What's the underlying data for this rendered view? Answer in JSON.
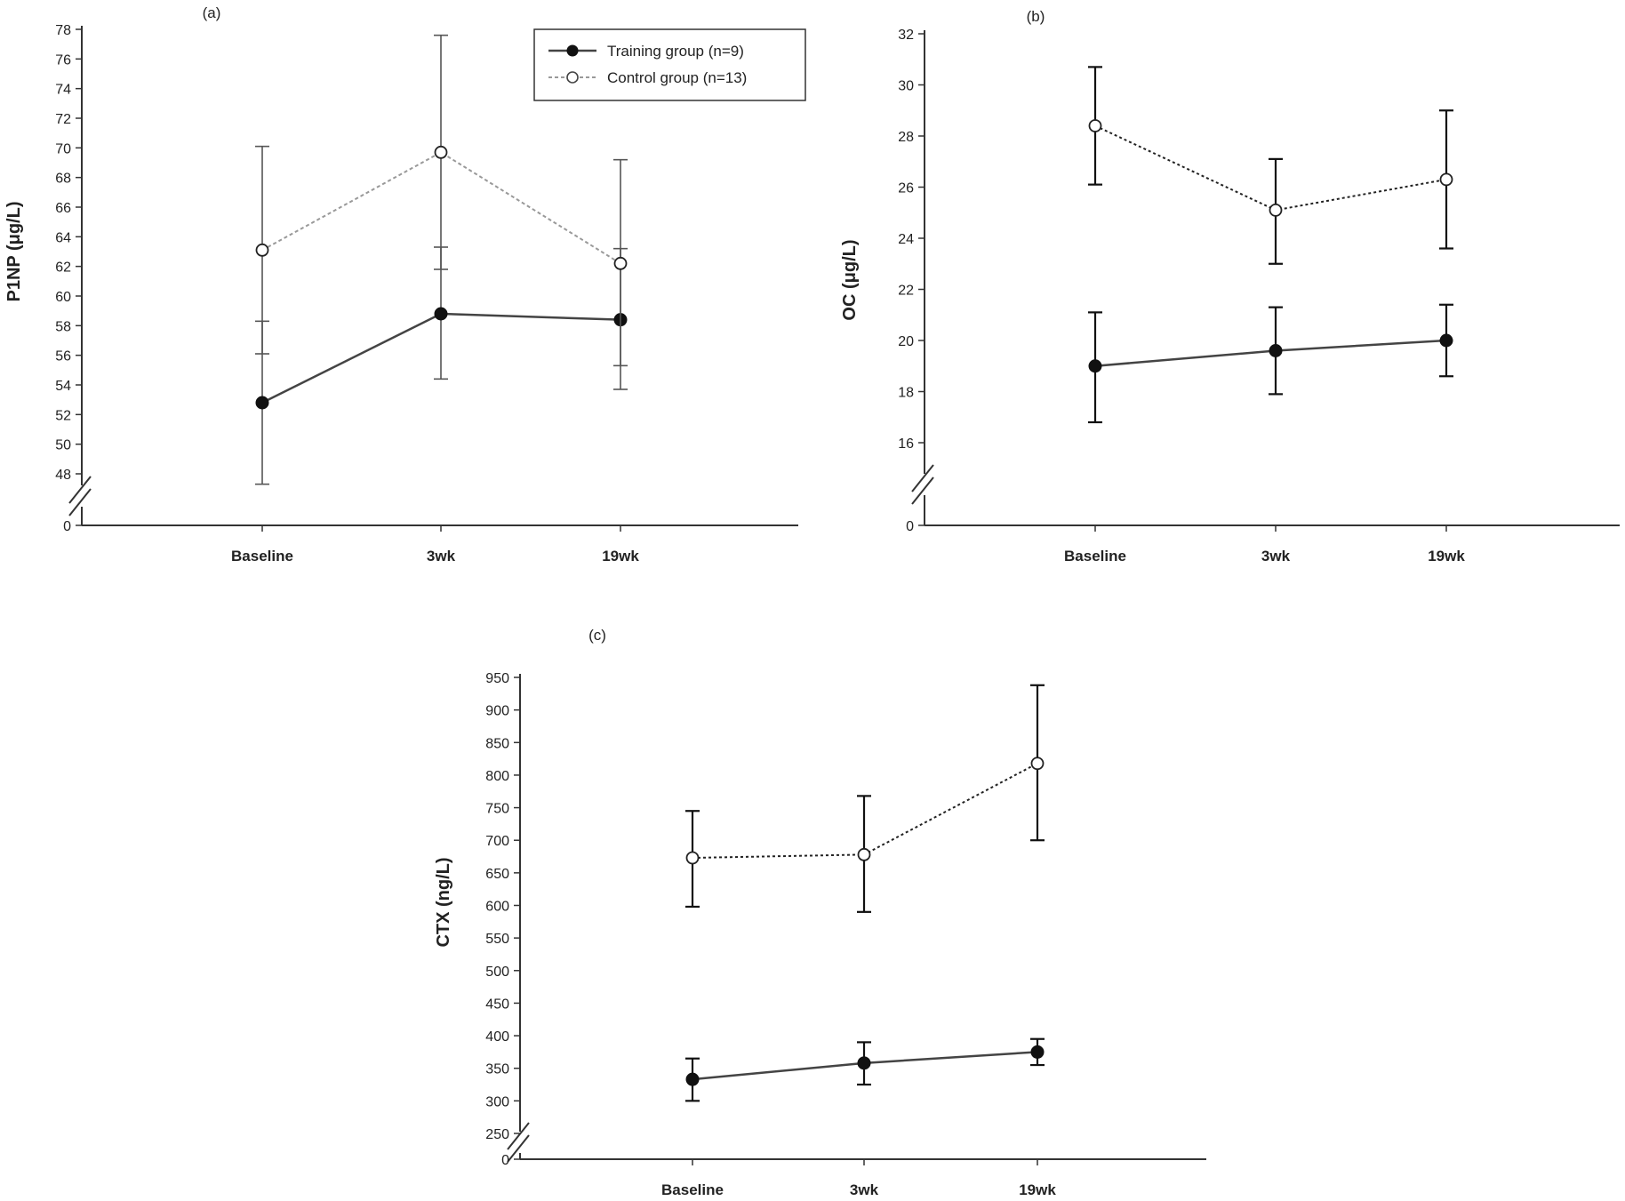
{
  "legend": {
    "training": "Training group (n=9)",
    "control": "Control group (n=13)"
  },
  "colors": {
    "axis": "#333333",
    "training_line": "#444444",
    "training_marker": "#111111",
    "control_line": "#999999",
    "control_line_dark": "#222222",
    "control_marker_fill": "#ffffff"
  },
  "chart_data": [
    {
      "panel_label": "(a)",
      "type": "line",
      "ylabel": "P1NP (μg/L)",
      "categories": [
        "Baseline",
        "3wk",
        "19wk"
      ],
      "y_ticks": [
        0,
        48,
        50,
        52,
        54,
        56,
        58,
        60,
        62,
        64,
        66,
        68,
        70,
        72,
        74,
        76,
        78
      ],
      "axis_break": true,
      "ylim": [
        48,
        78
      ],
      "show_legend": true,
      "legend_position": "top-right",
      "series": [
        {
          "name": "Training group (n=9)",
          "values": [
            52.8,
            58.8,
            58.4
          ],
          "err_low": [
            47.3,
            54.4,
            53.7
          ],
          "err_high": [
            58.3,
            63.3,
            63.2
          ],
          "marker": "filled"
        },
        {
          "name": "Control group (n=13)",
          "values": [
            63.1,
            69.7,
            62.2
          ],
          "err_low": [
            56.1,
            61.8,
            55.3
          ],
          "err_high": [
            70.1,
            77.6,
            69.2
          ],
          "marker": "open"
        }
      ]
    },
    {
      "panel_label": "(b)",
      "type": "line",
      "ylabel": "OC (μg/L)",
      "categories": [
        "Baseline",
        "3wk",
        "19wk"
      ],
      "y_ticks": [
        0,
        16,
        18,
        20,
        22,
        24,
        26,
        28,
        30,
        32
      ],
      "axis_break": true,
      "ylim": [
        16,
        32
      ],
      "show_legend": false,
      "series": [
        {
          "name": "Training group (n=9)",
          "values": [
            19.0,
            19.6,
            20.0
          ],
          "err_low": [
            16.8,
            17.9,
            18.6
          ],
          "err_high": [
            21.1,
            21.3,
            21.4
          ],
          "marker": "filled"
        },
        {
          "name": "Control group (n=13)",
          "values": [
            28.4,
            25.1,
            26.3
          ],
          "err_low": [
            26.1,
            23.0,
            23.6
          ],
          "err_high": [
            30.7,
            27.1,
            29.0
          ],
          "marker": "open"
        }
      ]
    },
    {
      "panel_label": "(c)",
      "type": "line",
      "ylabel": "CTX (ng/L)",
      "categories": [
        "Baseline",
        "3wk",
        "19wk"
      ],
      "y_ticks": [
        0,
        250,
        300,
        350,
        400,
        450,
        500,
        550,
        600,
        650,
        700,
        750,
        800,
        850,
        900,
        950
      ],
      "axis_break": true,
      "ylim": [
        250,
        950
      ],
      "show_legend": false,
      "series": [
        {
          "name": "Training group (n=9)",
          "values": [
            333,
            358,
            375
          ],
          "err_low": [
            300,
            325,
            355
          ],
          "err_high": [
            365,
            390,
            395
          ],
          "marker": "filled"
        },
        {
          "name": "Control group (n=13)",
          "values": [
            673,
            678,
            818
          ],
          "err_low": [
            598,
            590,
            700
          ],
          "err_high": [
            745,
            768,
            938
          ],
          "marker": "open"
        }
      ]
    }
  ]
}
